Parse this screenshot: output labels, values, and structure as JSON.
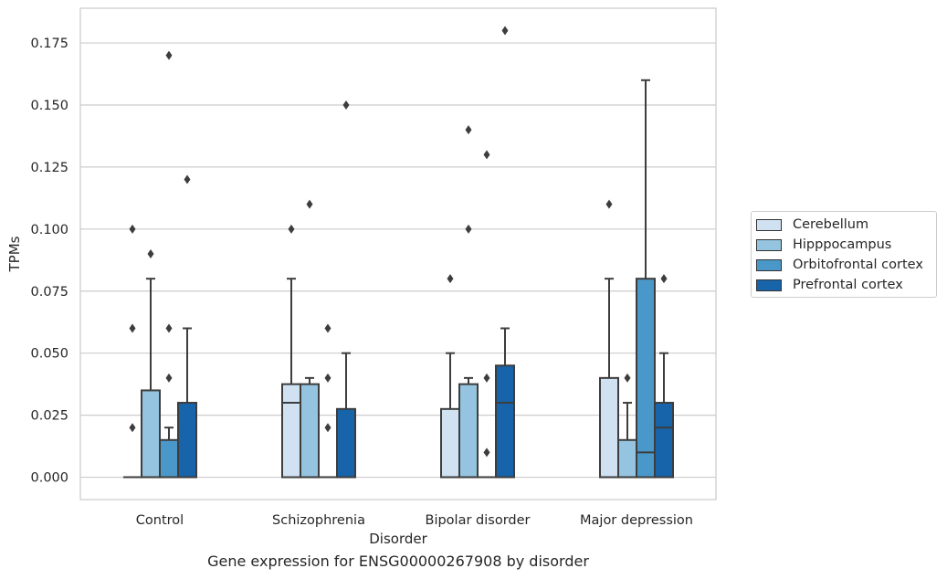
{
  "caption": "Gene expression for ENSG00000267908 by disorder",
  "chart_data": {
    "type": "box",
    "xlabel": "Disorder",
    "ylabel": "TPMs",
    "categories": [
      "Control",
      "Schizophrenia",
      "Bipolar disorder",
      "Major depression"
    ],
    "ylim": [
      -0.009,
      0.189
    ],
    "yticks": [
      "0.000",
      "0.025",
      "0.050",
      "0.075",
      "0.100",
      "0.125",
      "0.150",
      "0.175"
    ],
    "ytick_values": [
      0,
      0.025,
      0.05,
      0.075,
      0.1,
      0.125,
      0.15,
      0.175
    ],
    "grid": "horizontal",
    "legend_position": "center-right",
    "series": [
      {
        "name": "Cerebellum",
        "color": "#d0e1f2",
        "boxes": [
          {
            "q1": 0,
            "median": 0,
            "q3": 0,
            "whislo": 0,
            "whishi": 0,
            "fliers": [
              0.02,
              0.06,
              0.1
            ]
          },
          {
            "q1": 0,
            "median": 0.03,
            "q3": 0.0375,
            "whislo": 0,
            "whishi": 0.08,
            "fliers": [
              0.1
            ]
          },
          {
            "q1": 0,
            "median": 0,
            "q3": 0.0275,
            "whislo": 0,
            "whishi": 0.05,
            "fliers": [
              0.08
            ]
          },
          {
            "q1": 0,
            "median": 0,
            "q3": 0.04,
            "whislo": 0,
            "whishi": 0.08,
            "fliers": [
              0.11
            ]
          }
        ]
      },
      {
        "name": "Hipppocampus",
        "color": "#94c4df",
        "boxes": [
          {
            "q1": 0,
            "median": 0,
            "q3": 0.035,
            "whislo": 0,
            "whishi": 0.08,
            "fliers": [
              0.09
            ]
          },
          {
            "q1": 0,
            "median": 0,
            "q3": 0.0375,
            "whislo": 0,
            "whishi": 0.04,
            "fliers": [
              0.11
            ]
          },
          {
            "q1": 0,
            "median": 0,
            "q3": 0.0375,
            "whislo": 0,
            "whishi": 0.04,
            "fliers": [
              0.1,
              0.14
            ]
          },
          {
            "q1": 0,
            "median": 0,
            "q3": 0.015,
            "whislo": 0,
            "whishi": 0.03,
            "fliers": [
              0.04
            ]
          }
        ]
      },
      {
        "name": "Orbitofrontal cortex",
        "color": "#4a98c9",
        "boxes": [
          {
            "q1": 0,
            "median": 0,
            "q3": 0.015,
            "whislo": 0,
            "whishi": 0.02,
            "fliers": [
              0.04,
              0.06,
              0.17
            ]
          },
          {
            "q1": 0,
            "median": 0,
            "q3": 0,
            "whislo": 0,
            "whishi": 0,
            "fliers": [
              0.02,
              0.04,
              0.06
            ]
          },
          {
            "q1": 0,
            "median": 0,
            "q3": 0,
            "whislo": 0,
            "whishi": 0,
            "fliers": [
              0.01,
              0.04,
              0.13
            ]
          },
          {
            "q1": 0,
            "median": 0.01,
            "q3": 0.08,
            "whislo": 0,
            "whishi": 0.16,
            "fliers": []
          }
        ]
      },
      {
        "name": "Prefrontal cortex",
        "color": "#1764ab",
        "boxes": [
          {
            "q1": 0,
            "median": 0,
            "q3": 0.03,
            "whislo": 0,
            "whishi": 0.06,
            "fliers": [
              0.12
            ]
          },
          {
            "q1": 0,
            "median": 0,
            "q3": 0.0275,
            "whislo": 0,
            "whishi": 0.05,
            "fliers": [
              0.15
            ]
          },
          {
            "q1": 0,
            "median": 0.03,
            "q3": 0.045,
            "whislo": 0,
            "whishi": 0.06,
            "fliers": [
              0.18
            ]
          },
          {
            "q1": 0,
            "median": 0.02,
            "q3": 0.03,
            "whislo": 0,
            "whishi": 0.05,
            "fliers": [
              0.08
            ]
          }
        ]
      }
    ]
  }
}
